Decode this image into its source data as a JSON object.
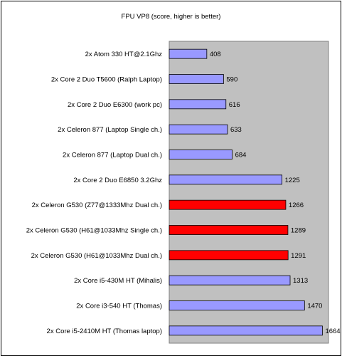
{
  "chart_data": {
    "type": "bar",
    "orientation": "horizontal",
    "title": "FPU VP8 (score, higher is better)",
    "xlabel": "",
    "ylabel": "",
    "xlim": [
      0,
      1730
    ],
    "grid": false,
    "legend": "none",
    "categories": [
      "2x Atom 330 HT@2.1Ghz",
      "2x Core 2 Duo T5600 (Ralph Laptop)",
      "2x Core 2 Duo E6300 (work pc)",
      "2x Celeron 877 (Laptop Single ch.)",
      "2x Celeron 877 (Laptop Dual ch.)",
      "2x Core 2 Duo E6850 3.2Ghz",
      "2x Celeron G530 (Z77@1333Mhz Dual ch.)",
      "2x Celeron G530 (H61@1033Mhz Single ch.)",
      "2x Celeron G530 (H61@1033Mhz Dual ch.)",
      "2x Core i5-430M HT (Mihalis)",
      "2x Core i3-540 HT  (Thomas)",
      "2x Core i5-2410M HT (Thomas laptop)"
    ],
    "values": [
      408,
      590,
      616,
      633,
      684,
      1225,
      1266,
      1289,
      1291,
      1313,
      1470,
      1664
    ],
    "value_labels": [
      "408",
      "590",
      "616",
      "633",
      "684",
      "1225",
      "1266",
      "1289",
      "1291",
      "1313",
      "1470",
      "1664"
    ],
    "highlighted": [
      false,
      false,
      false,
      false,
      false,
      false,
      true,
      true,
      true,
      false,
      false,
      false
    ]
  },
  "colors": {
    "bar_default": "#9999ff",
    "bar_highlight": "#ff0000",
    "plot_background": "#c0c0c0",
    "bar_outline": "#000000"
  }
}
